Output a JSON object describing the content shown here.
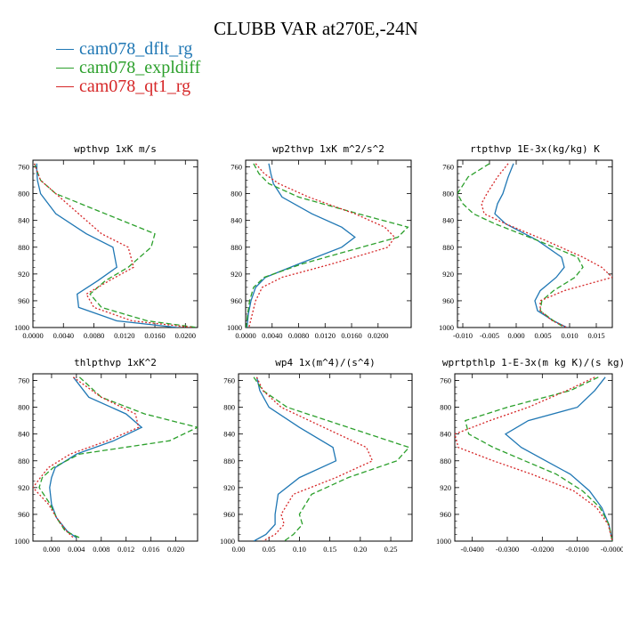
{
  "title": "CLUBB VAR at270E,-24N",
  "legend": [
    {
      "label": "cam078_dflt_rg",
      "color": "#1f77b4",
      "dash": "solid"
    },
    {
      "label": "cam078_expldiff",
      "color": "#2ca02c",
      "dash": "dashed"
    },
    {
      "label": "cam078_qt1_rg",
      "color": "#d62728",
      "dash": "dotted"
    }
  ],
  "chart_data": [
    {
      "type": "line",
      "title": "wpthvp  1xK m/s",
      "xlim": [
        0,
        0.0216
      ],
      "ylim": [
        1000,
        750
      ],
      "xticks": [
        "0.0000",
        "0.0040",
        "0.0080",
        "0.0120",
        "0.0160",
        "0.0200"
      ],
      "xtick_values": [
        0,
        0.004,
        0.008,
        0.012,
        0.016,
        0.02
      ],
      "yticks": [
        760,
        800,
        840,
        880,
        920,
        960,
        1000
      ],
      "y": [
        755,
        765,
        780,
        800,
        830,
        860,
        880,
        910,
        930,
        950,
        970,
        990,
        1000
      ],
      "series": [
        {
          "name": "cam078_dflt_rg",
          "x": [
            0.0005,
            0.0005,
            0.0006,
            0.001,
            0.003,
            0.007,
            0.0105,
            0.011,
            0.0085,
            0.0058,
            0.006,
            0.011,
            0.019
          ]
        },
        {
          "name": "cam078_expldiff",
          "x": [
            0.0002,
            0.0005,
            0.001,
            0.003,
            0.0095,
            0.016,
            0.0155,
            0.0125,
            0.0095,
            0.0075,
            0.009,
            0.015,
            0.0216
          ]
        },
        {
          "name": "cam078_qt1_rg",
          "x": [
            0.0002,
            0.0005,
            0.001,
            0.003,
            0.006,
            0.009,
            0.0125,
            0.0132,
            0.01,
            0.007,
            0.008,
            0.013,
            0.021
          ]
        }
      ]
    },
    {
      "type": "line",
      "title": "wp2thvp  1xK m^2/s^2",
      "xlim": [
        0,
        0.025
      ],
      "ylim": [
        1000,
        750
      ],
      "xticks": [
        "0.0000",
        "0.0040",
        "0.0080",
        "0.0120",
        "0.0160",
        "0.0200"
      ],
      "xtick_values": [
        0,
        0.004,
        0.008,
        0.012,
        0.016,
        0.02
      ],
      "yticks": [
        760,
        800,
        840,
        880,
        920,
        960,
        1000
      ],
      "y": [
        755,
        770,
        785,
        805,
        830,
        850,
        865,
        880,
        905,
        925,
        940,
        960,
        980,
        1000
      ],
      "series": [
        {
          "name": "cam078_dflt_rg",
          "x": [
            0.0035,
            0.0038,
            0.0042,
            0.0055,
            0.01,
            0.0145,
            0.0165,
            0.0145,
            0.008,
            0.003,
            0.0015,
            0.0008,
            0.0004,
            0.0002
          ]
        },
        {
          "name": "cam078_expldiff",
          "x": [
            0.0012,
            0.002,
            0.0035,
            0.008,
            0.017,
            0.0245,
            0.023,
            0.0175,
            0.0085,
            0.0028,
            0.0012,
            0.0006,
            0.0003,
            0.0001
          ]
        },
        {
          "name": "cam078_qt1_rg",
          "x": [
            0.0015,
            0.0028,
            0.005,
            0.0095,
            0.0165,
            0.021,
            0.0225,
            0.0215,
            0.013,
            0.0055,
            0.0025,
            0.0015,
            0.001,
            0.0005
          ]
        }
      ]
    },
    {
      "type": "line",
      "title": "rtpthvp  1E-3x(kg/kg) K",
      "xlim": [
        -0.011,
        0.018
      ],
      "ylim": [
        1000,
        750
      ],
      "xticks": [
        "-0.010",
        "-0.005",
        "0.000",
        "0.005",
        "0.010",
        "0.015"
      ],
      "xtick_values": [
        -0.01,
        -0.005,
        0,
        0.005,
        0.01,
        0.015
      ],
      "yticks": [
        760,
        800,
        840,
        880,
        920,
        960,
        1000
      ],
      "y": [
        755,
        775,
        800,
        815,
        830,
        845,
        870,
        895,
        910,
        925,
        945,
        960,
        975,
        990,
        1000
      ],
      "series": [
        {
          "name": "cam078_dflt_rg",
          "x": [
            -0.0005,
            -0.0015,
            -0.0025,
            -0.0035,
            -0.004,
            -0.002,
            0.004,
            0.0085,
            0.009,
            0.0075,
            0.0045,
            0.0035,
            0.004,
            0.007,
            0.0095
          ]
        },
        {
          "name": "cam078_expldiff",
          "x": [
            -0.005,
            -0.009,
            -0.011,
            -0.01,
            -0.008,
            -0.004,
            0.004,
            0.0115,
            0.0125,
            0.011,
            0.007,
            0.0048,
            0.0045,
            0.007,
            0.009
          ]
        },
        {
          "name": "cam078_qt1_rg",
          "x": [
            -0.0015,
            -0.0035,
            -0.0055,
            -0.0065,
            -0.006,
            -0.002,
            0.0055,
            0.0125,
            0.016,
            0.018,
            0.009,
            0.0045,
            0.0045,
            0.0068,
            0.0095
          ]
        }
      ]
    },
    {
      "type": "line",
      "title": "thlpthvp  1xK^2",
      "xlim": [
        -0.003,
        0.0235
      ],
      "ylim": [
        1000,
        750
      ],
      "xticks": [
        "0.000",
        "0.004",
        "0.008",
        "0.012",
        "0.016",
        "0.020"
      ],
      "xtick_values": [
        0,
        0.004,
        0.008,
        0.012,
        0.016,
        0.02
      ],
      "yticks": [
        760,
        800,
        840,
        880,
        920,
        960,
        1000
      ],
      "y": [
        755,
        785,
        810,
        830,
        850,
        870,
        890,
        905,
        920,
        945,
        965,
        985,
        995
      ],
      "series": [
        {
          "name": "cam078_dflt_rg",
          "x": [
            0.0035,
            0.006,
            0.012,
            0.0145,
            0.01,
            0.004,
            0.0006,
            0.0,
            -0.0003,
            0.0,
            0.0008,
            0.0025,
            0.004
          ]
        },
        {
          "name": "cam078_expldiff",
          "x": [
            0.0045,
            0.008,
            0.015,
            0.0235,
            0.019,
            0.0045,
            0.0003,
            -0.0015,
            -0.002,
            -0.0002,
            0.0008,
            0.0022,
            0.0045
          ]
        },
        {
          "name": "cam078_qt1_rg",
          "x": [
            0.0035,
            0.008,
            0.0135,
            0.014,
            0.009,
            0.003,
            -0.0005,
            -0.0018,
            -0.003,
            -0.0005,
            0.0008,
            0.0024,
            0.0035
          ]
        }
      ]
    },
    {
      "type": "line",
      "title": "wp4  1x(m^4)/(s^4)",
      "xlim": [
        0,
        0.285
      ],
      "ylim": [
        1000,
        750
      ],
      "xticks": [
        "0.00",
        "0.05",
        "0.10",
        "0.15",
        "0.20",
        "0.25"
      ],
      "xtick_values": [
        0,
        0.05,
        0.1,
        0.15,
        0.2,
        0.25
      ],
      "yticks": [
        760,
        800,
        840,
        880,
        920,
        960,
        1000
      ],
      "y": [
        755,
        775,
        800,
        830,
        860,
        880,
        905,
        930,
        960,
        975,
        990,
        1000
      ],
      "series": [
        {
          "name": "cam078_dflt_rg",
          "x": [
            0.03,
            0.035,
            0.05,
            0.1,
            0.155,
            0.16,
            0.1,
            0.065,
            0.06,
            0.06,
            0.045,
            0.025
          ]
        },
        {
          "name": "cam078_expldiff",
          "x": [
            0.025,
            0.04,
            0.08,
            0.18,
            0.28,
            0.26,
            0.18,
            0.12,
            0.1,
            0.105,
            0.09,
            0.075
          ]
        },
        {
          "name": "cam078_qt1_rg",
          "x": [
            0.03,
            0.04,
            0.07,
            0.14,
            0.21,
            0.22,
            0.16,
            0.09,
            0.07,
            0.075,
            0.06,
            0.04
          ]
        }
      ]
    },
    {
      "type": "line",
      "title": "wprtpthlp  1-E-3x(m kg K)/(s kg)",
      "xlim": [
        -0.045,
        0.0
      ],
      "ylim": [
        1000,
        750
      ],
      "xticks": [
        "-0.0400",
        "-0.0300",
        "-0.0200",
        "-0.0100",
        "-0.0000"
      ],
      "xtick_values": [
        -0.04,
        -0.03,
        -0.02,
        -0.01,
        0
      ],
      "yticks": [
        760,
        800,
        840,
        880,
        920,
        960,
        1000
      ],
      "y": [
        755,
        775,
        800,
        820,
        840,
        860,
        880,
        900,
        925,
        950,
        975,
        1000
      ],
      "series": [
        {
          "name": "cam078_dflt_rg",
          "x": [
            -0.002,
            -0.005,
            -0.01,
            -0.024,
            -0.0305,
            -0.026,
            -0.019,
            -0.012,
            -0.0065,
            -0.003,
            -0.001,
            0.0
          ]
        },
        {
          "name": "cam078_expldiff",
          "x": [
            -0.004,
            -0.012,
            -0.03,
            -0.042,
            -0.041,
            -0.034,
            -0.025,
            -0.016,
            -0.0085,
            -0.0035,
            -0.001,
            0.0
          ]
        },
        {
          "name": "cam078_qt1_rg",
          "x": [
            -0.005,
            -0.013,
            -0.024,
            -0.035,
            -0.045,
            -0.044,
            -0.034,
            -0.023,
            -0.011,
            -0.0045,
            -0.0012,
            0.0
          ]
        }
      ]
    }
  ]
}
